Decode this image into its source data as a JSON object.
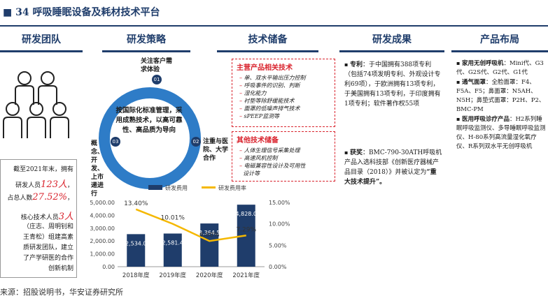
{
  "title": "34 呼吸睡眠设备及耗材技术平台",
  "headers": [
    "研发团队",
    "研发策略",
    "技术储备",
    "研发成果",
    "产品布局"
  ],
  "team": {
    "lines": [
      {
        "pre": "截至2021年末，拥有",
        "num": "",
        "post": ""
      },
      {
        "pre": "研发人员",
        "num": "123人",
        "post": "，"
      },
      {
        "pre": "占总人数",
        "num": "27.52%",
        "post": "，"
      },
      {
        "pre": "核心技术人员",
        "num": "3人",
        "post": ""
      },
      {
        "pre": "（庄志、周明钊和",
        "num": "",
        "post": ""
      },
      {
        "pre": "王青松）组建高素",
        "num": "",
        "post": ""
      },
      {
        "pre": "质研发团队，建立",
        "num": "",
        "post": ""
      },
      {
        "pre": "了产学研医的合作",
        "num": "",
        "post": ""
      },
      {
        "pre": "创新机制",
        "num": "",
        "post": ""
      }
    ]
  },
  "strategy": {
    "center": "按国际化标准管理，采用成熟技术，以高可靠性、高品质为导向",
    "node1_num": "01",
    "node1_label": "关注客户需求体验",
    "node2_num": "02",
    "node2_label": "注重与医院、大学合作",
    "node3_num": "03",
    "node3_label": "概念、开发、上市递进行"
  },
  "tech": {
    "main_title": "主营产品相关技术",
    "main_items": [
      "单、双水平输出压力控制",
      "呼吸事件的识别、判断",
      "湿化能力",
      "衬垫等除舒缓能技术",
      "面罩的低噪声排气技术",
      "sPEEP监测等"
    ],
    "other_title": "其他技术储备",
    "other_items": [
      "人体生理信号采集处理",
      "高速风机控制",
      "电磁兼容性设计及可用性",
      "设计等"
    ]
  },
  "results": {
    "patent_label": "专利",
    "patent_text": "：于中国拥有388项专利（包括74项发明专利、外观设计专利69项），于欧洲拥有13项专利，于美国拥有13项专利，于印度拥有1项专利；软件著作权55项",
    "award_label": "获奖",
    "award_text": "：BMC-790-30ATH呼吸机产品入选科技部《创新医疗器械产品目录（2018）》并被认定为",
    "award_highlight": "“重大技术提升”。"
  },
  "products": {
    "items": [
      {
        "label": "家用无创呼吸机",
        "text": "：Mini代、G3代、G2S代、G2代、G1代"
      },
      {
        "label": "通气面罩",
        "text": "：全脸面罩：F4、F5A、F5；鼻面罩：N5AH、N5H；鼻垫式面罩：P2H、P2、BMC-PM"
      },
      {
        "label": "医用呼吸诊疗产品",
        "text": "：H2系列睡眠呼吸监测仪、多导睡眠呼吸监测仪、H-80系列高流量湿化氧疗仪、R系列双水平无创呼吸机"
      }
    ]
  },
  "source": "来源：招股说明书，华安证券研究所",
  "chart_data": {
    "type": "bar",
    "categories": [
      "2018年度",
      "2019年度",
      "2020年度",
      "2021年度"
    ],
    "series": [
      {
        "name": "研发费用",
        "values": [
          2534.0,
          2581.4,
          3364.5,
          4828.0
        ],
        "type": "bar",
        "axis": "left",
        "labels": [
          "2,534.0",
          "2,581.4",
          "3,364.5",
          "4,828.0"
        ]
      },
      {
        "name": "研发费用率",
        "values": [
          13.4,
          10.01,
          6.0,
          7.29
        ],
        "type": "line",
        "axis": "right",
        "labels": [
          "13.40%",
          "10.01%",
          "6.00%",
          "7.29%"
        ]
      }
    ],
    "y_left_ticks": [
      "5,000.00",
      "4,000.00",
      "3,000.00",
      "2,000.00",
      "1,000.00",
      "0.00"
    ],
    "y_right_ticks": [
      "15.00%",
      "10.00%",
      "5.00%",
      "0.00%"
    ],
    "ylim_left": [
      0,
      5000
    ],
    "ylim_right": [
      0,
      15
    ],
    "colors": {
      "bar": "#1f3d6b",
      "line": "#f5b800"
    }
  }
}
